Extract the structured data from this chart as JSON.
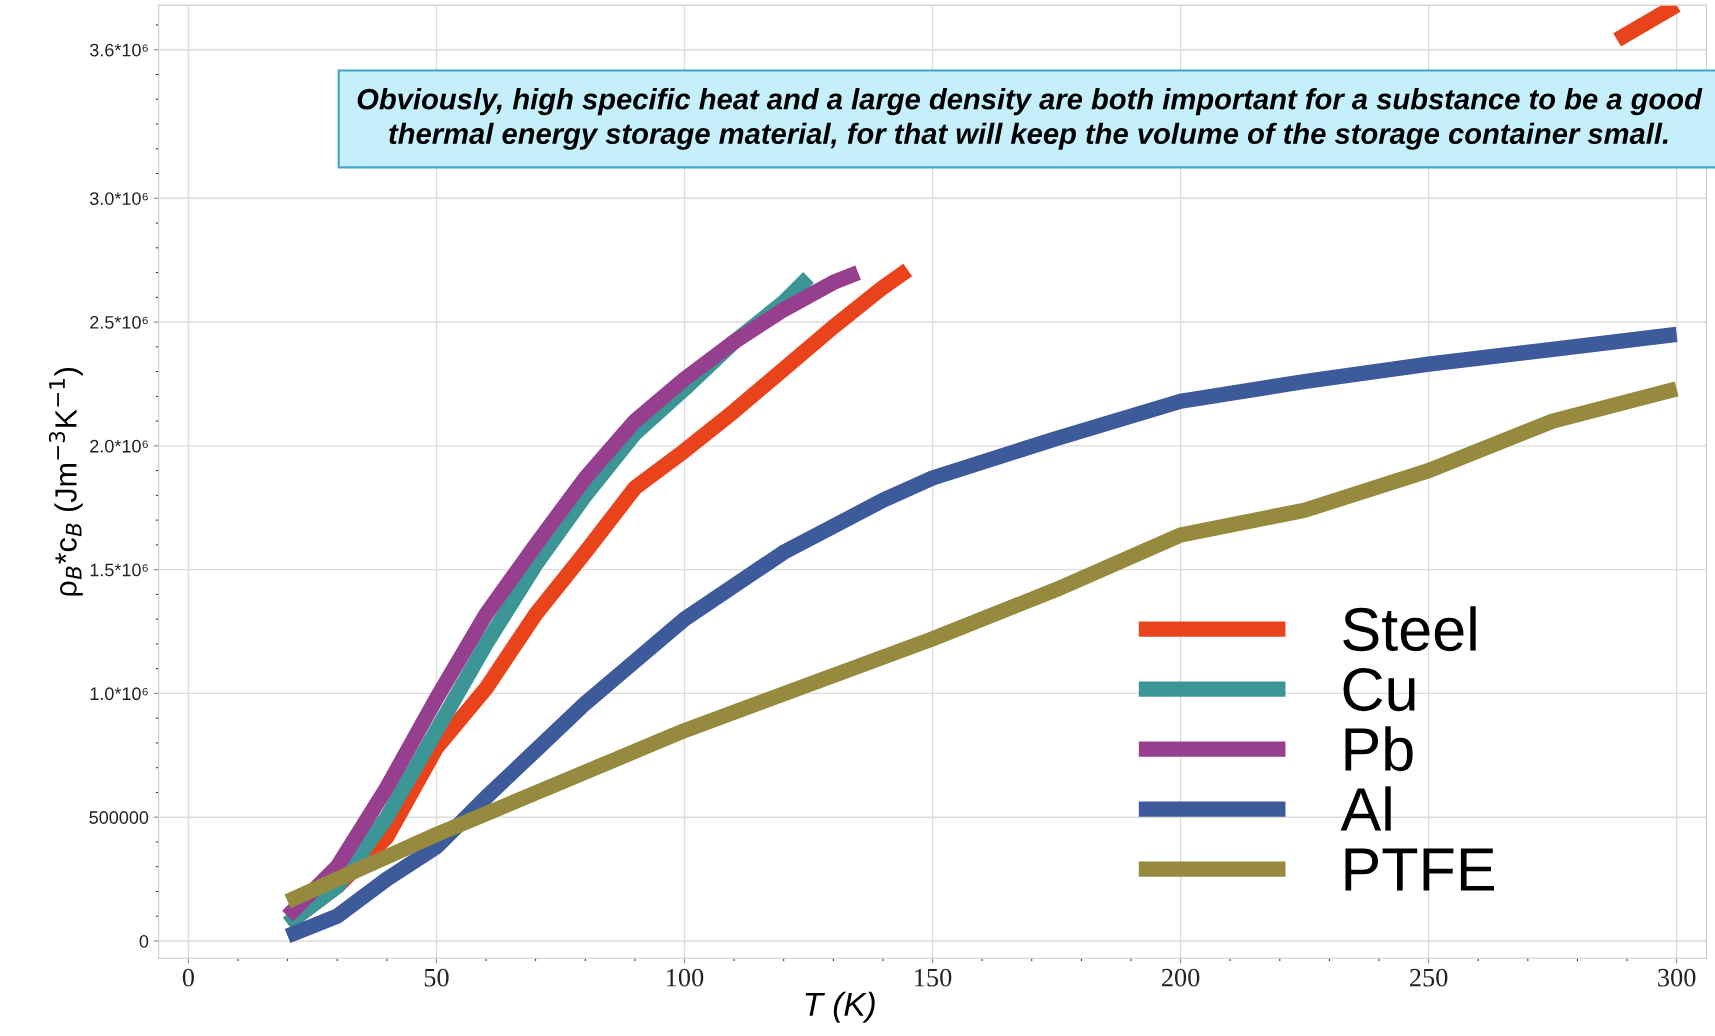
{
  "chart_data": {
    "type": "line",
    "xlabel": "T (K)",
    "ylabel": "ρ$_{B}$*c$_{B}$ (Jm$^{−3}$K$^{−1}$)",
    "annotations": [
      "Obviously, high specific heat and a large density are both important for a substance to be a good thermal energy storage material, for that will keep the volume of the storage container small."
    ],
    "xlim": [
      -6,
      306
    ],
    "ylim": [
      -70000,
      3780000
    ],
    "xticks": [
      0,
      50,
      100,
      150,
      200,
      250,
      300
    ],
    "yticks": [
      0,
      500000,
      {
        "value": 1000000,
        "label": "1.0*10⁶"
      },
      {
        "value": 1500000,
        "label": "1.5*10⁶"
      },
      {
        "value": 2000000,
        "label": "2.0*10⁶"
      },
      {
        "value": 2500000,
        "label": "2.5*10⁶"
      },
      {
        "value": 3000000,
        "label": "3.0*10⁶"
      },
      {
        "value": 3600000,
        "label": "3.6*10⁶"
      }
    ],
    "grid": true,
    "legend": "bottom right",
    "marker": "none",
    "line_style": "solid",
    "series": [
      {
        "name": "Steel",
        "color": "#e8431a",
        "x": [
          20,
          30,
          40,
          50,
          60,
          70,
          80,
          90,
          100,
          110,
          120,
          130,
          140,
          145,
          150,
          288,
          300
        ],
        "values": [
          70000,
          220000,
          420000,
          780000,
          1020000,
          1320000,
          1570000,
          1830000,
          1980000,
          2140000,
          2310000,
          2480000,
          2640000,
          2710000,
          null,
          3640000,
          3780000
        ]
      },
      {
        "name": "Cu",
        "color": "#3d9696",
        "x": [
          20,
          30,
          40,
          50,
          60,
          70,
          80,
          90,
          100,
          110,
          120,
          125
        ],
        "values": [
          70000,
          220000,
          500000,
          850000,
          1200000,
          1520000,
          1800000,
          2050000,
          2230000,
          2420000,
          2580000,
          2680000
        ]
      },
      {
        "name": "Pb",
        "color": "#963f8e",
        "x": [
          20,
          30,
          40,
          50,
          60,
          70,
          80,
          90,
          100,
          110,
          120,
          130,
          135
        ],
        "values": [
          100000,
          300000,
          620000,
          980000,
          1320000,
          1600000,
          1870000,
          2100000,
          2270000,
          2420000,
          2550000,
          2660000,
          2700000
        ]
      },
      {
        "name": "Al",
        "color": "#3d5a9a",
        "x": [
          20,
          30,
          40,
          50,
          60,
          70,
          80,
          90,
          100,
          120,
          140,
          150,
          175,
          200,
          225,
          250,
          275,
          300
        ],
        "values": [
          20000,
          100000,
          250000,
          380000,
          580000,
          770000,
          960000,
          1130000,
          1300000,
          1570000,
          1780000,
          1870000,
          2030000,
          2180000,
          2260000,
          2330000,
          2390000,
          2450000
        ]
      },
      {
        "name": "PTFE",
        "color": "#958a3d",
        "x": [
          20,
          50,
          100,
          150,
          175,
          200,
          225,
          250,
          275,
          300
        ],
        "values": [
          160000,
          430000,
          850000,
          1220000,
          1420000,
          1640000,
          1740000,
          1900000,
          2100000,
          2230000
        ]
      }
    ]
  }
}
